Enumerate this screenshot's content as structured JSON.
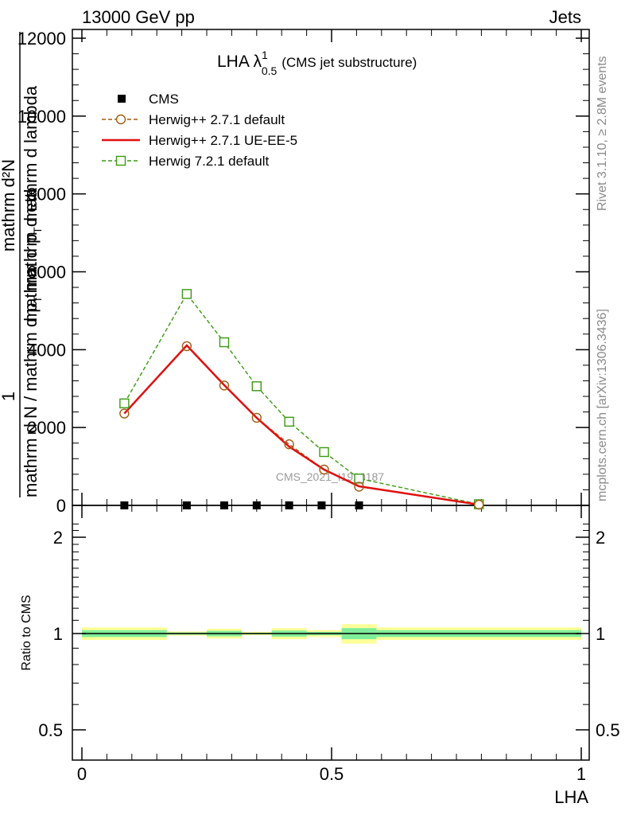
{
  "header": {
    "left": "13000 GeV pp",
    "right": "Jets"
  },
  "side": {
    "rivet": "Rivet 3.1.10, ≥ 2.8M events",
    "mcplots": "mcplots.cern.ch [arXiv:1306.3436]"
  },
  "plot_title": {
    "main": "LHA λ",
    "sup": "1",
    "sub": "0.5",
    "suffix": "(CMS jet substructure)"
  },
  "watermark": "CMS_2021_I1920187",
  "y_axis_label": {
    "numerator_one": "1",
    "denominator_main": "mathrm d N / mathrm d p",
    "denominator_sub": "T",
    "denominator_tail": " mathrm d eta",
    "right_num": "mathrm d²N",
    "right_den_main": "mathrm d p",
    "right_den_sub": "T",
    "right_den_tail": " mathrm d lambda"
  },
  "ratio_y_label": "Ratio to CMS",
  "x_axis_label": "LHA",
  "colors": {
    "cms": "#000000",
    "herwig_default": "#a05a10",
    "herwig_ueee5": "#e01010",
    "herwig721": "#3a9a10",
    "band_outer": "#ffff99",
    "band_inner": "#80ee99"
  },
  "chart_data": [
    {
      "type": "line",
      "panel": "main",
      "xlabel": "",
      "ylabel": "1 / (mathrm d N / mathrm d p_T mathrm d eta) · mathrm d²N / (mathrm d p_T mathrm d lambda)",
      "xlim": [
        0,
        1
      ],
      "ylim": [
        0,
        12000
      ],
      "y_ticks": [
        0,
        2000,
        4000,
        6000,
        8000,
        10000,
        12000
      ],
      "y_tick_labels": [
        "0",
        "2000",
        "4000",
        "6000",
        "8000",
        "10000",
        "12000"
      ],
      "legend_position": "top-left",
      "series": [
        {
          "name": "CMS",
          "style": "square-marker",
          "x": [
            0.085,
            0.21,
            0.285,
            0.35,
            0.415,
            0.48,
            0.555
          ],
          "values": [
            0,
            0,
            0,
            0,
            0,
            0,
            0
          ]
        },
        {
          "name": "Herwig++ 2.7.1 default",
          "style": "dashed-circle",
          "x": [
            0.085,
            0.21,
            0.285,
            0.35,
            0.415,
            0.485,
            0.555,
            0.795
          ],
          "values": [
            2360,
            4090,
            3080,
            2250,
            1570,
            920,
            480,
            20
          ]
        },
        {
          "name": "Herwig++ 2.7.1 UE-EE-5",
          "style": "solid",
          "x": [
            0.085,
            0.21,
            0.285,
            0.35,
            0.415,
            0.485,
            0.555,
            0.795
          ],
          "values": [
            2360,
            4110,
            3090,
            2250,
            1510,
            920,
            490,
            20
          ]
        },
        {
          "name": "Herwig 7.2.1 default",
          "style": "dashed-square",
          "x": [
            0.085,
            0.21,
            0.285,
            0.35,
            0.415,
            0.485,
            0.555,
            0.795
          ],
          "values": [
            2620,
            5430,
            4190,
            3060,
            2150,
            1370,
            690,
            30
          ]
        }
      ]
    },
    {
      "type": "area",
      "panel": "ratio",
      "xlabel": "LHA",
      "ylabel": "Ratio to CMS",
      "xlim": [
        0,
        1
      ],
      "ylim": [
        0.35,
        2.25
      ],
      "y_ticks": [
        0.5,
        1,
        2
      ],
      "y_tick_labels": [
        "0.5",
        "1",
        "2"
      ],
      "x_ticks": [
        0,
        0.5,
        1
      ],
      "x_tick_labels": [
        "0",
        "0.5",
        "1"
      ],
      "bins": [
        {
          "x0": 0.0,
          "x1": 0.17,
          "outer_lo": 0.955,
          "outer_hi": 1.045,
          "inner_lo": 0.975,
          "inner_hi": 1.025
        },
        {
          "x0": 0.17,
          "x1": 0.25,
          "outer_lo": 0.985,
          "outer_hi": 1.015,
          "inner_lo": 0.992,
          "inner_hi": 1.008
        },
        {
          "x0": 0.25,
          "x1": 0.32,
          "outer_lo": 0.965,
          "outer_hi": 1.035,
          "inner_lo": 0.98,
          "inner_hi": 1.02
        },
        {
          "x0": 0.32,
          "x1": 0.38,
          "outer_lo": 0.988,
          "outer_hi": 1.012,
          "inner_lo": 0.994,
          "inner_hi": 1.006
        },
        {
          "x0": 0.38,
          "x1": 0.45,
          "outer_lo": 0.96,
          "outer_hi": 1.04,
          "inner_lo": 0.978,
          "inner_hi": 1.022
        },
        {
          "x0": 0.45,
          "x1": 0.52,
          "outer_lo": 0.975,
          "outer_hi": 1.025,
          "inner_lo": 0.988,
          "inner_hi": 1.012
        },
        {
          "x0": 0.52,
          "x1": 0.59,
          "outer_lo": 0.93,
          "outer_hi": 1.07,
          "inner_lo": 0.96,
          "inner_hi": 1.04
        },
        {
          "x0": 0.59,
          "x1": 1.0,
          "outer_lo": 0.955,
          "outer_hi": 1.045,
          "inner_lo": 0.975,
          "inner_hi": 1.025
        }
      ]
    }
  ]
}
